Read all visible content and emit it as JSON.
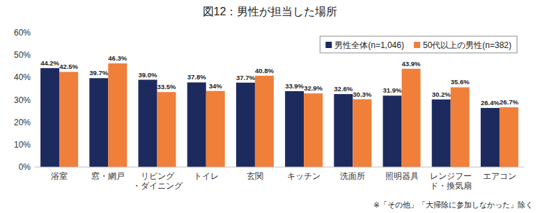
{
  "chart_data": {
    "type": "bar",
    "title": "図12：男性が担当した場所",
    "categories": [
      "浴室",
      "窓・網戸",
      "リビング\n・ダイニング",
      "トイレ",
      "玄関",
      "キッチン",
      "洗面所",
      "照明器具",
      "レンジフー\nド・換気扇",
      "エアコン"
    ],
    "series": [
      {
        "name": "男性全体(n=1,046)",
        "color": "#1c2a5e",
        "values": [
          44.2,
          39.7,
          39.0,
          37.8,
          37.7,
          33.9,
          32.6,
          31.9,
          30.2,
          26.4
        ],
        "value_labels": [
          "44.2%",
          "39.7%",
          "39.0%",
          "37.8%",
          "37.7%",
          "33.9%",
          "32.6%",
          "31.9%",
          "30.2%",
          "26.4%"
        ]
      },
      {
        "name": "50代以上の男性(n=382)",
        "color": "#f07f3a",
        "values": [
          42.5,
          46.3,
          33.5,
          34,
          40.8,
          32.9,
          30.3,
          43.9,
          35.6,
          26.7
        ],
        "value_labels": [
          "42.5%",
          "46.3%",
          "33.5%",
          "34%",
          "40.8%",
          "32.9%",
          "30.3%",
          "43.9%",
          "35.6%",
          "26.7%"
        ]
      }
    ],
    "ylim": [
      0,
      60
    ],
    "yticks": [
      {
        "value": 0,
        "label": "0%"
      },
      {
        "value": 10,
        "label": "10%"
      },
      {
        "value": 20,
        "label": "20%"
      },
      {
        "value": 30,
        "label": "30%"
      },
      {
        "value": 40,
        "label": "40%"
      },
      {
        "value": 50,
        "label": "50%"
      },
      {
        "value": 60,
        "label": "60%"
      }
    ],
    "grid": false,
    "legend": "top-right",
    "data_labels": true,
    "annotations": [
      "※「その他」「大掃除に参加しなかった」除く"
    ]
  }
}
